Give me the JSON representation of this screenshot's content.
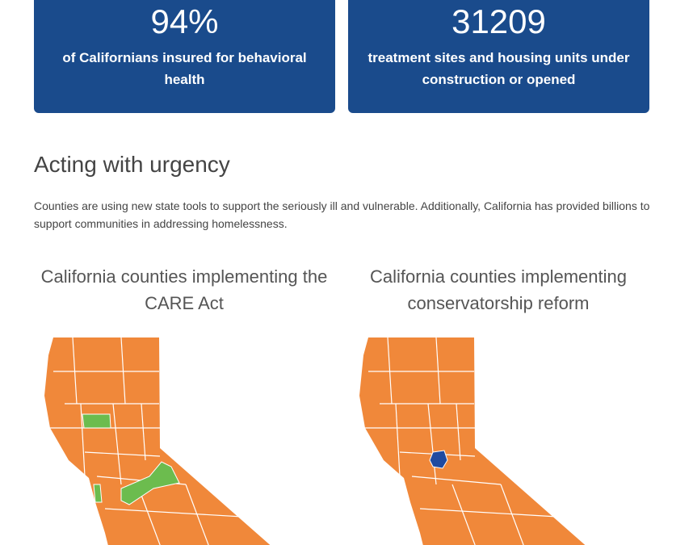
{
  "stats": [
    {
      "value": "94%",
      "label": "of Californians insured for behavioral health"
    },
    {
      "value": "31209",
      "label": "treatment sites and housing units under construction or opened"
    }
  ],
  "section": {
    "heading": "Acting with urgency",
    "body": "Counties are using new state tools to support the seriously ill and vulnerable. Additionally, California has provided billions to support communities in addressing homelessness."
  },
  "maps": [
    {
      "title": "California counties implementing the CARE Act"
    },
    {
      "title": "California counties implementing conservatorship reform"
    }
  ]
}
